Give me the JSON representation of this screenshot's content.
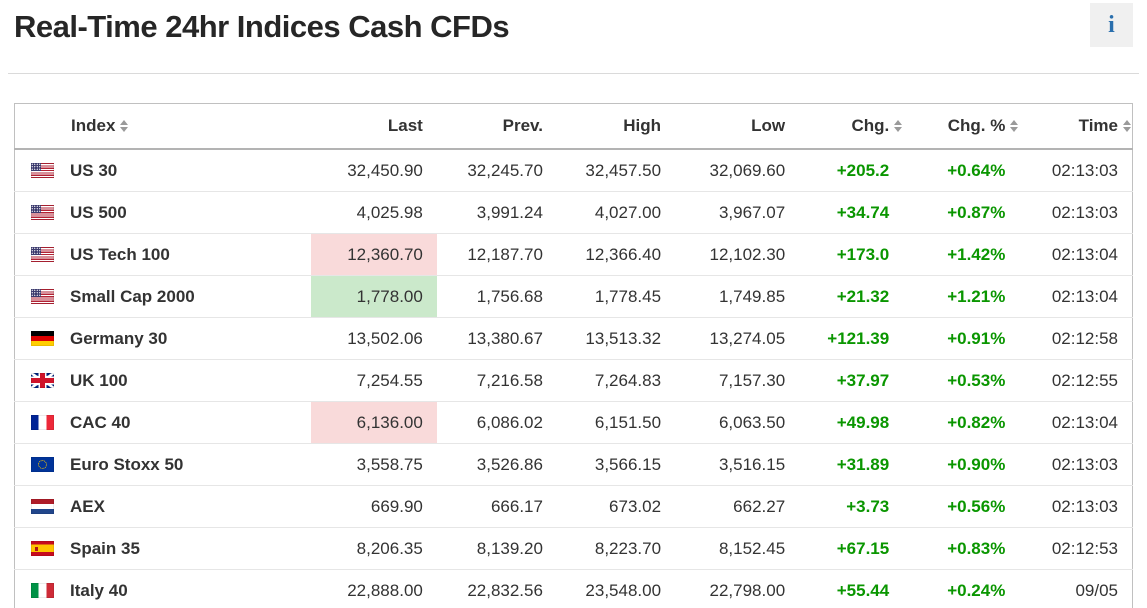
{
  "page": {
    "title": "Real-Time 24hr Indices Cash CFDs",
    "info_icon_glyph": "i"
  },
  "colors": {
    "positive_change": "#0a9600",
    "last_flash_down": "#f9dada",
    "last_flash_up": "#cbe9cb",
    "info_icon_blue": "#2a6fad"
  },
  "table": {
    "columns": [
      {
        "label": "Index",
        "sortable": true
      },
      {
        "label": "Last",
        "sortable": false
      },
      {
        "label": "Prev.",
        "sortable": false
      },
      {
        "label": "High",
        "sortable": false
      },
      {
        "label": "Low",
        "sortable": false
      },
      {
        "label": "Chg.",
        "sortable": true
      },
      {
        "label": "Chg. %",
        "sortable": true
      },
      {
        "label": "Time",
        "sortable": true
      }
    ],
    "rows": [
      {
        "flag": "us",
        "index": "US 30",
        "last": "32,450.90",
        "prev": "32,245.70",
        "high": "32,457.50",
        "low": "32,069.60",
        "chg": "+205.2",
        "chg_pct": "+0.64%",
        "time": "02:13:03",
        "last_highlight": "none"
      },
      {
        "flag": "us",
        "index": "US 500",
        "last": "4,025.98",
        "prev": "3,991.24",
        "high": "4,027.00",
        "low": "3,967.07",
        "chg": "+34.74",
        "chg_pct": "+0.87%",
        "time": "02:13:03",
        "last_highlight": "none"
      },
      {
        "flag": "us",
        "index": "US Tech 100",
        "last": "12,360.70",
        "prev": "12,187.70",
        "high": "12,366.40",
        "low": "12,102.30",
        "chg": "+173.0",
        "chg_pct": "+1.42%",
        "time": "02:13:04",
        "last_highlight": "red"
      },
      {
        "flag": "us",
        "index": "Small Cap 2000",
        "last": "1,778.00",
        "prev": "1,756.68",
        "high": "1,778.45",
        "low": "1,749.85",
        "chg": "+21.32",
        "chg_pct": "+1.21%",
        "time": "02:13:04",
        "last_highlight": "green"
      },
      {
        "flag": "de",
        "index": "Germany 30",
        "last": "13,502.06",
        "prev": "13,380.67",
        "high": "13,513.32",
        "low": "13,274.05",
        "chg": "+121.39",
        "chg_pct": "+0.91%",
        "time": "02:12:58",
        "last_highlight": "none"
      },
      {
        "flag": "gb",
        "index": "UK 100",
        "last": "7,254.55",
        "prev": "7,216.58",
        "high": "7,264.83",
        "low": "7,157.30",
        "chg": "+37.97",
        "chg_pct": "+0.53%",
        "time": "02:12:55",
        "last_highlight": "none"
      },
      {
        "flag": "fr",
        "index": "CAC 40",
        "last": "6,136.00",
        "prev": "6,086.02",
        "high": "6,151.50",
        "low": "6,063.50",
        "chg": "+49.98",
        "chg_pct": "+0.82%",
        "time": "02:13:04",
        "last_highlight": "red"
      },
      {
        "flag": "eu",
        "index": "Euro Stoxx 50",
        "last": "3,558.75",
        "prev": "3,526.86",
        "high": "3,566.15",
        "low": "3,516.15",
        "chg": "+31.89",
        "chg_pct": "+0.90%",
        "time": "02:13:03",
        "last_highlight": "none"
      },
      {
        "flag": "nl",
        "index": "AEX",
        "last": "669.90",
        "prev": "666.17",
        "high": "673.02",
        "low": "662.27",
        "chg": "+3.73",
        "chg_pct": "+0.56%",
        "time": "02:13:03",
        "last_highlight": "none"
      },
      {
        "flag": "es",
        "index": "Spain 35",
        "last": "8,206.35",
        "prev": "8,139.20",
        "high": "8,223.70",
        "low": "8,152.45",
        "chg": "+67.15",
        "chg_pct": "+0.83%",
        "time": "02:12:53",
        "last_highlight": "none"
      },
      {
        "flag": "it",
        "index": "Italy 40",
        "last": "22,888.00",
        "prev": "22,832.56",
        "high": "23,548.00",
        "low": "22,798.00",
        "chg": "+55.44",
        "chg_pct": "+0.24%",
        "time": "09/05",
        "last_highlight": "none"
      }
    ]
  }
}
